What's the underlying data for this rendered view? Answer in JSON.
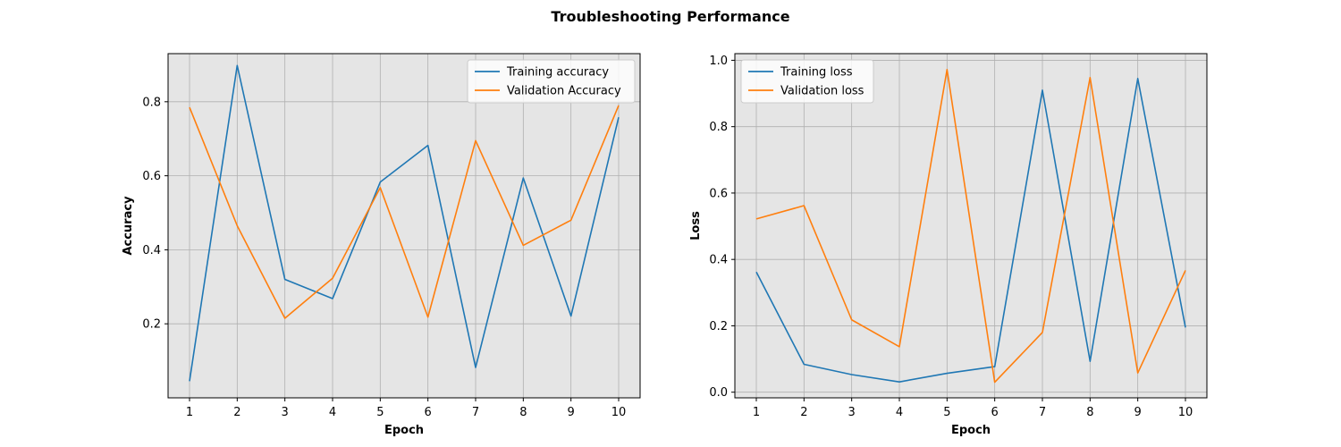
{
  "figure": {
    "suptitle": "Troubleshooting Performance"
  },
  "colors": {
    "training": "#1f77b4",
    "validation": "#ff7f0e",
    "grid": "#b0b0b0",
    "panel_bg": "#e5e5e5"
  },
  "chart_data": [
    {
      "type": "line",
      "title": "",
      "xlabel": "Epoch",
      "ylabel": "Accuracy",
      "x": [
        1,
        2,
        3,
        4,
        5,
        6,
        7,
        8,
        9,
        10
      ],
      "xticks": [
        "1",
        "2",
        "3",
        "4",
        "5",
        "6",
        "7",
        "8",
        "9",
        "10"
      ],
      "yticks": [
        "0.2",
        "0.4",
        "0.6",
        "0.8"
      ],
      "ytick_values": [
        0.2,
        0.4,
        0.6,
        0.8
      ],
      "xlim": [
        0.55,
        10.45
      ],
      "ylim": [
        0.0,
        0.93
      ],
      "grid": true,
      "legend_position": "upper right",
      "series": [
        {
          "name": "Training accuracy",
          "color": "#1f77b4",
          "values": [
            0.045,
            0.898,
            0.32,
            0.268,
            0.583,
            0.682,
            0.082,
            0.594,
            0.221,
            0.758
          ]
        },
        {
          "name": "Validation Accuracy",
          "color": "#ff7f0e",
          "values": [
            0.785,
            0.465,
            0.215,
            0.323,
            0.568,
            0.218,
            0.695,
            0.412,
            0.48,
            0.79
          ]
        }
      ]
    },
    {
      "type": "line",
      "title": "",
      "xlabel": "Epoch",
      "ylabel": "Loss",
      "x": [
        1,
        2,
        3,
        4,
        5,
        6,
        7,
        8,
        9,
        10
      ],
      "xticks": [
        "1",
        "2",
        "3",
        "4",
        "5",
        "6",
        "7",
        "8",
        "9",
        "10"
      ],
      "yticks": [
        "0.0",
        "0.2",
        "0.4",
        "0.6",
        "0.8",
        "1.0"
      ],
      "ytick_values": [
        0.0,
        0.2,
        0.4,
        0.6,
        0.8,
        1.0
      ],
      "xlim": [
        0.55,
        10.45
      ],
      "ylim": [
        -0.017,
        1.02
      ],
      "grid": true,
      "legend_position": "upper left",
      "series": [
        {
          "name": "Training loss",
          "color": "#1f77b4",
          "values": [
            0.362,
            0.084,
            0.053,
            0.031,
            0.057,
            0.077,
            0.91,
            0.093,
            0.945,
            0.195
          ]
        },
        {
          "name": "Validation loss",
          "color": "#ff7f0e",
          "values": [
            0.522,
            0.562,
            0.218,
            0.137,
            0.972,
            0.03,
            0.18,
            0.948,
            0.058,
            0.367
          ]
        }
      ]
    }
  ]
}
